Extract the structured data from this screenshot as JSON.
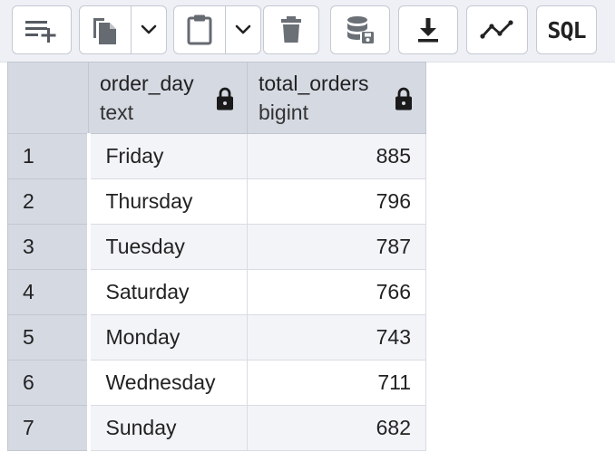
{
  "toolbar": {
    "buttons": [
      {
        "icon": "add-row-icon"
      },
      {
        "icon": "copy-icon"
      },
      {
        "icon": "chevron-down-icon"
      },
      {
        "icon": "paste-icon"
      },
      {
        "icon": "chevron-down-icon"
      },
      {
        "icon": "delete-icon"
      },
      {
        "icon": "save-data-icon"
      },
      {
        "icon": "download-icon"
      },
      {
        "icon": "graph-icon"
      }
    ],
    "sql_label": "SQL"
  },
  "table": {
    "columns": [
      {
        "name": "order_day",
        "type": "text",
        "locked": true
      },
      {
        "name": "total_orders",
        "type": "bigint",
        "locked": true
      }
    ],
    "rows": [
      {
        "num": "1",
        "order_day": "Friday",
        "total_orders": "885"
      },
      {
        "num": "2",
        "order_day": "Thursday",
        "total_orders": "796"
      },
      {
        "num": "3",
        "order_day": "Tuesday",
        "total_orders": "787"
      },
      {
        "num": "4",
        "order_day": "Saturday",
        "total_orders": "766"
      },
      {
        "num": "5",
        "order_day": "Monday",
        "total_orders": "743"
      },
      {
        "num": "6",
        "order_day": "Wednesday",
        "total_orders": "711"
      },
      {
        "num": "7",
        "order_day": "Sunday",
        "total_orders": "682"
      }
    ]
  },
  "colors": {
    "header_bg": "#d5d9e2",
    "row_alt_bg": "#f3f4f8",
    "icon": "#222222",
    "icon_disabled": "#6b6f76"
  }
}
